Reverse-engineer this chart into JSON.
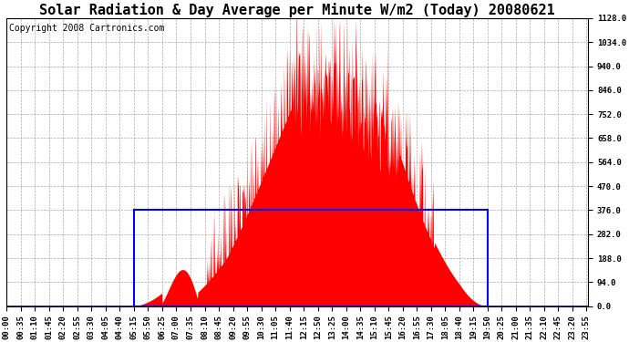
{
  "title": "Solar Radiation & Day Average per Minute W/m2 (Today) 20080621",
  "copyright": "Copyright 2008 Cartronics.com",
  "y_ticks": [
    0.0,
    94.0,
    188.0,
    282.0,
    376.0,
    470.0,
    564.0,
    658.0,
    752.0,
    846.0,
    940.0,
    1034.0,
    1128.0
  ],
  "y_max": 1128.0,
  "y_min": 0.0,
  "background_color": "#ffffff",
  "plot_bg_color": "#ffffff",
  "fill_color": "#ff0000",
  "box_color": "#0000ff",
  "grid_color": "#aaaaaa",
  "title_fontsize": 11,
  "copyright_fontsize": 7,
  "tick_fontsize": 6.5,
  "sunrise_min": 315,
  "sunset_min": 1190,
  "day_avg": 376.0,
  "total_minutes": 1440,
  "x_tick_step_min": 35
}
